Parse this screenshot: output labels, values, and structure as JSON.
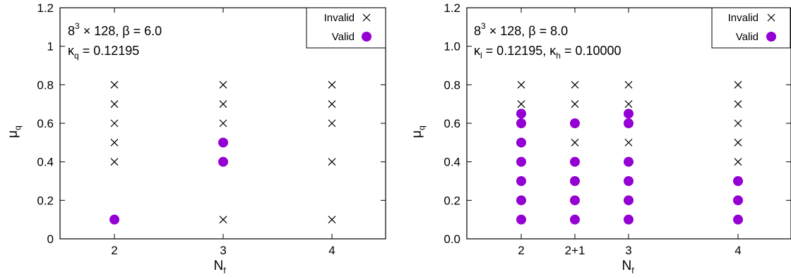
{
  "colors": {
    "valid": "#9400d3",
    "invalid": "#000000",
    "axes": "#000000"
  },
  "chart_data": [
    {
      "type": "scatter",
      "xlabel": {
        "main": "N",
        "sub": "f"
      },
      "ylabel": {
        "main": "μ",
        "sub": "q"
      },
      "ylim": [
        0,
        1.2
      ],
      "xcategories": [
        "2",
        "3",
        "4"
      ],
      "ytick_labels": [
        "0",
        "0.2",
        "0.4",
        "0.6",
        "0.8",
        "1",
        "1.2"
      ],
      "yticks": [
        0,
        0.2,
        0.4,
        0.6,
        0.8,
        1.0,
        1.2
      ],
      "annotation": {
        "line1": {
          "base": "8",
          "sup": "3",
          "rest": " × 128, β = 6.0"
        },
        "line2": {
          "k": "κ",
          "sub": "q",
          "rest": " = 0.12195"
        }
      },
      "legend": {
        "position": "top-right",
        "invalid": "Invalid",
        "valid": "Valid"
      },
      "series": [
        {
          "name": "Invalid",
          "marker": "x",
          "points": [
            [
              "2",
              0.8
            ],
            [
              "2",
              0.7
            ],
            [
              "2",
              0.6
            ],
            [
              "2",
              0.5
            ],
            [
              "2",
              0.4
            ],
            [
              "3",
              0.8
            ],
            [
              "3",
              0.7
            ],
            [
              "3",
              0.6
            ],
            [
              "3",
              0.1
            ],
            [
              "4",
              0.8
            ],
            [
              "4",
              0.7
            ],
            [
              "4",
              0.6
            ],
            [
              "4",
              0.4
            ],
            [
              "4",
              0.1
            ]
          ]
        },
        {
          "name": "Valid",
          "marker": "circle",
          "points": [
            [
              "2",
              0.1
            ],
            [
              "3",
              0.5
            ],
            [
              "3",
              0.4
            ]
          ]
        }
      ]
    },
    {
      "type": "scatter",
      "xlabel": {
        "main": "N",
        "sub": "f"
      },
      "ylabel": {
        "main": "μ",
        "sub": "q"
      },
      "ylim": [
        0,
        1.2
      ],
      "xcategories": [
        "2",
        "2+1",
        "3",
        "4"
      ],
      "ytick_labels": [
        "0.0",
        "0.2",
        "0.4",
        "0.6",
        "0.8",
        "1.0",
        "1.2"
      ],
      "yticks": [
        0,
        0.2,
        0.4,
        0.6,
        0.8,
        1.0,
        1.2
      ],
      "annotation": {
        "line1": {
          "base": "8",
          "sup": "3",
          "rest": " × 128, β = 8.0"
        },
        "line2": {
          "k": "κ",
          "sub": "l",
          "mid": " = 0.12195, ",
          "k2": "κ",
          "sub2": "h",
          "rest": " = 0.10000"
        }
      },
      "legend": {
        "position": "top-right",
        "invalid": "Invalid",
        "valid": "Valid"
      },
      "series": [
        {
          "name": "Invalid",
          "marker": "x",
          "points": [
            [
              "2",
              0.8
            ],
            [
              "2",
              0.7
            ],
            [
              "2+1",
              0.8
            ],
            [
              "2+1",
              0.7
            ],
            [
              "2+1",
              0.5
            ],
            [
              "3",
              0.8
            ],
            [
              "3",
              0.7
            ],
            [
              "3",
              0.5
            ],
            [
              "4",
              0.8
            ],
            [
              "4",
              0.7
            ],
            [
              "4",
              0.6
            ],
            [
              "4",
              0.5
            ],
            [
              "4",
              0.4
            ]
          ]
        },
        {
          "name": "Valid",
          "marker": "circle",
          "points": [
            [
              "2",
              0.65
            ],
            [
              "2",
              0.6
            ],
            [
              "2",
              0.5
            ],
            [
              "2",
              0.4
            ],
            [
              "2",
              0.3
            ],
            [
              "2",
              0.2
            ],
            [
              "2",
              0.1
            ],
            [
              "2+1",
              0.6
            ],
            [
              "2+1",
              0.4
            ],
            [
              "2+1",
              0.3
            ],
            [
              "2+1",
              0.2
            ],
            [
              "2+1",
              0.1
            ],
            [
              "3",
              0.65
            ],
            [
              "3",
              0.6
            ],
            [
              "3",
              0.4
            ],
            [
              "3",
              0.3
            ],
            [
              "3",
              0.2
            ],
            [
              "3",
              0.1
            ],
            [
              "4",
              0.3
            ],
            [
              "4",
              0.2
            ],
            [
              "4",
              0.1
            ]
          ]
        }
      ]
    }
  ]
}
